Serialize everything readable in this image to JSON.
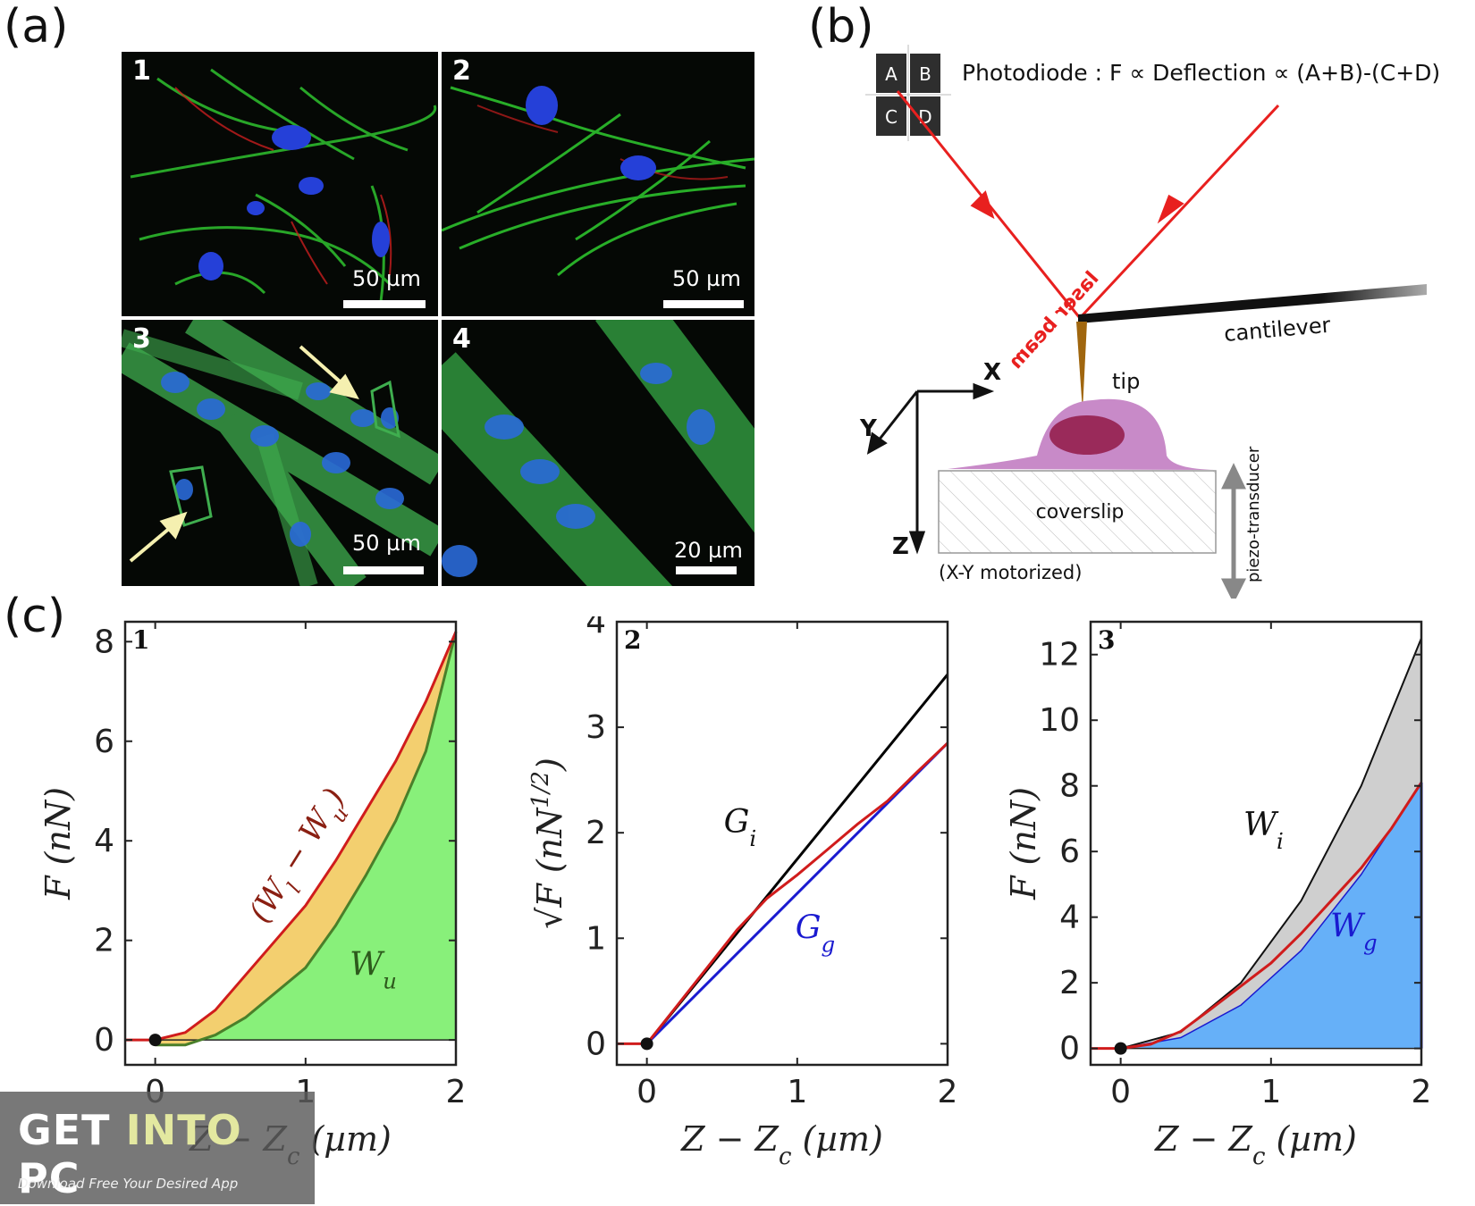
{
  "panels": {
    "a": {
      "letter": "(a)"
    },
    "b": {
      "letter": "(b)"
    },
    "c": {
      "letter": "(c)"
    }
  },
  "micrographs": [
    {
      "num": "1",
      "scale_bar": "50 µm"
    },
    {
      "num": "2",
      "scale_bar": "50 µm"
    },
    {
      "num": "3",
      "scale_bar": "50 µm"
    },
    {
      "num": "4",
      "scale_bar": "20 µm"
    }
  ],
  "afm_diagram": {
    "photodiode_label": "Photodiode : F ∝ Deflection ∝ (A+B)-(C+D)",
    "quadrants": [
      "A",
      "B",
      "C",
      "D"
    ],
    "laser_label": "laser beam",
    "cantilever_label": "cantilever",
    "tip_label": "tip",
    "coverslip_label": "coverslip",
    "stage_label": "(X-Y motorized)",
    "piezo_label": "piezo-transducer",
    "axes": [
      "X",
      "Y",
      "Z"
    ],
    "colors": {
      "laser": "#e8201f",
      "cell": "#c88ac8",
      "nucleus": "#9a2a5a",
      "tip": "#a0660e"
    }
  },
  "plots": [
    {
      "num": "1",
      "xlabel": "Z − Z_c (µm)",
      "ylabel": "F (nN)",
      "xticks": [
        "0",
        "1",
        "2"
      ],
      "yticks": [
        "0",
        "2",
        "4",
        "6",
        "8"
      ],
      "annotations": [
        "(W_l − W_u)",
        "W_u"
      ],
      "colors": {
        "loading": "#d01c1c",
        "unloading": "#4a7f2a",
        "fill_between": "#f3cf6f",
        "fill_under": "#88f07a"
      }
    },
    {
      "num": "2",
      "xlabel": "Z − Z_c (µm)",
      "ylabel": "√F (nN^1/2)",
      "xticks": [
        "0",
        "1",
        "2"
      ],
      "yticks": [
        "0",
        "1",
        "2",
        "3",
        "4"
      ],
      "annotations": [
        "G_i",
        "G_g"
      ],
      "colors": {
        "data": "#d01c1c",
        "Gi": "#000000",
        "Gg": "#1a1ad0"
      }
    },
    {
      "num": "3",
      "xlabel": "Z − Z_c (µm)",
      "ylabel": "F (nN)",
      "xticks": [
        "0",
        "1",
        "2"
      ],
      "yticks": [
        "0",
        "2",
        "4",
        "6",
        "8",
        "10",
        "12"
      ],
      "annotations": [
        "W_i",
        "W_g"
      ],
      "colors": {
        "data": "#d01c1c",
        "fill_i": "#cfcfcf",
        "fill_g": "#66b0f8"
      }
    }
  ],
  "chart_data": [
    {
      "type": "area",
      "xlim": [
        -0.2,
        2
      ],
      "ylim": [
        -0.5,
        8.4
      ],
      "series": [
        {
          "name": "",
          "x": [
            -0.2,
            0,
            0.2,
            0.4,
            0.6,
            0.8,
            1.0,
            1.2,
            1.4,
            1.6,
            1.8,
            2.0
          ],
          "y": [
            0,
            0,
            0.15,
            0.6,
            1.3,
            2.0,
            2.7,
            3.6,
            4.6,
            5.6,
            6.8,
            8.2
          ]
        },
        {
          "name": "",
          "x": [
            0,
            0.2,
            0.4,
            0.6,
            0.8,
            1.0,
            1.2,
            1.4,
            1.6,
            1.8,
            2.0
          ],
          "y": [
            -0.1,
            -0.1,
            0.1,
            0.45,
            0.95,
            1.45,
            2.3,
            3.3,
            4.4,
            5.8,
            8.2
          ]
        }
      ]
    },
    {
      "type": "line",
      "xlim": [
        -0.2,
        2
      ],
      "ylim": [
        -0.2,
        4
      ],
      "series": [
        {
          "name": "",
          "x": [
            -0.2,
            0,
            0.2,
            0.4,
            0.6,
            0.8,
            1.0,
            1.2,
            1.4,
            1.6,
            1.8,
            2.0
          ],
          "y": [
            0,
            0,
            0.36,
            0.72,
            1.08,
            1.38,
            1.6,
            1.84,
            2.08,
            2.3,
            2.58,
            2.85
          ]
        },
        {
          "name": "",
          "x": [
            0,
            2
          ],
          "y": [
            0,
            3.5
          ]
        },
        {
          "name": "",
          "x": [
            0,
            2
          ],
          "y": [
            0,
            2.85
          ]
        }
      ]
    },
    {
      "type": "area",
      "xlim": [
        -0.2,
        2
      ],
      "ylim": [
        -0.5,
        13
      ],
      "series": [
        {
          "name": "",
          "x": [
            -0.2,
            0,
            0.2,
            0.4,
            0.6,
            0.8,
            1.0,
            1.2,
            1.4,
            1.6,
            1.8,
            2.0
          ],
          "y": [
            0,
            0,
            0.13,
            0.52,
            1.2,
            1.9,
            2.6,
            3.5,
            4.5,
            5.5,
            6.7,
            8.1
          ]
        },
        {
          "name": "",
          "x": [
            0,
            0.4,
            0.8,
            1.2,
            1.6,
            2.0
          ],
          "y": [
            0,
            0.5,
            2.0,
            4.5,
            8.0,
            12.5
          ]
        },
        {
          "name": "",
          "x": [
            0,
            0.4,
            0.8,
            1.2,
            1.6,
            2.0
          ],
          "y": [
            0,
            0.33,
            1.32,
            2.98,
            5.3,
            8.1
          ]
        }
      ]
    }
  ],
  "watermark": {
    "line1_a": "GET ",
    "line1_b": "INTO",
    "line1_c": " PC",
    "line2": "Download Free Your Desired App"
  }
}
